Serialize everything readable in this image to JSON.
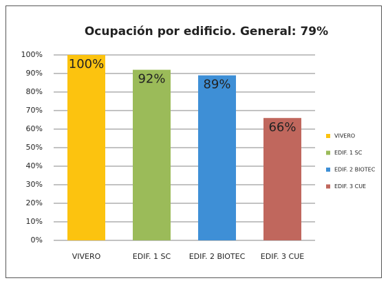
{
  "chart_data": {
    "type": "bar",
    "title": "Ocupación por edificio. General: 79%",
    "categories": [
      "VIVERO",
      "EDIF. 1 SC",
      "EDIF. 2 BIOTEC",
      "EDIF. 3 CUE"
    ],
    "values": [
      100,
      92,
      89,
      66
    ],
    "value_labels": [
      "100%",
      "92%",
      "89%",
      "66%"
    ],
    "colors": [
      "#fcc30f",
      "#9bbb59",
      "#3e8fd6",
      "#c0675d"
    ],
    "ylim": [
      0,
      100
    ],
    "yticks": [
      {
        "value": 0,
        "label": "0%"
      },
      {
        "value": 10,
        "label": "10%"
      },
      {
        "value": 20,
        "label": "20%"
      },
      {
        "value": 30,
        "label": "30%"
      },
      {
        "value": 40,
        "label": "40%"
      },
      {
        "value": 50,
        "label": "50%"
      },
      {
        "value": 60,
        "label": "60%"
      },
      {
        "value": 70,
        "label": "70%"
      },
      {
        "value": 80,
        "label": "80%"
      },
      {
        "value": 90,
        "label": "90%"
      },
      {
        "value": 100,
        "label": "100%"
      }
    ],
    "grid": true,
    "legend": "right"
  }
}
